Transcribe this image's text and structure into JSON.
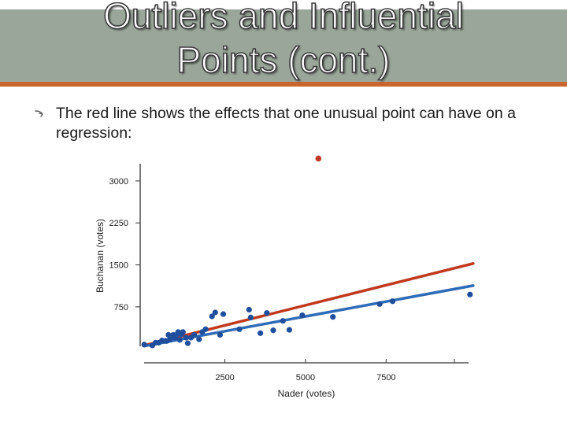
{
  "slide": {
    "title_line1": "Outliers and Influential",
    "title_line2": "Points (cont.)",
    "bullet_icon": "arrow-bullet-icon",
    "bullet_text": "The red line shows the effects that one unusual point can have on a regression:"
  },
  "colors": {
    "title_bar": "#9aa69a",
    "title_rule": "#c8662e",
    "points": "#1f4e9c",
    "outlier": "#c0392b",
    "fit_with_outlier": "#c0391e",
    "fit_without_outlier": "#2e6cb8"
  },
  "chart_data": {
    "type": "scatter",
    "xlabel": "Nader (votes)",
    "ylabel": "Buchanan (votes)",
    "x_ticks": [
      2500,
      5000,
      7500
    ],
    "y_ticks": [
      750,
      1500,
      2250,
      3000
    ],
    "xlim": [
      -200,
      10300
    ],
    "ylim": [
      -250,
      3350
    ],
    "grid": false,
    "points": [
      [
        0,
        75
      ],
      [
        250,
        60
      ],
      [
        350,
        110
      ],
      [
        450,
        110
      ],
      [
        550,
        150
      ],
      [
        650,
        140
      ],
      [
        700,
        140
      ],
      [
        750,
        250
      ],
      [
        800,
        170
      ],
      [
        900,
        250
      ],
      [
        950,
        200
      ],
      [
        1000,
        250
      ],
      [
        1050,
        300
      ],
      [
        1100,
        160
      ],
      [
        1150,
        260
      ],
      [
        1200,
        300
      ],
      [
        1300,
        200
      ],
      [
        1350,
        100
      ],
      [
        1450,
        200
      ],
      [
        1550,
        250
      ],
      [
        1700,
        170
      ],
      [
        1800,
        300
      ],
      [
        1900,
        350
      ],
      [
        2100,
        580
      ],
      [
        2200,
        650
      ],
      [
        2350,
        250
      ],
      [
        2450,
        620
      ],
      [
        2950,
        350
      ],
      [
        3250,
        700
      ],
      [
        3300,
        560
      ],
      [
        3600,
        280
      ],
      [
        3800,
        640
      ],
      [
        4000,
        330
      ],
      [
        4300,
        500
      ],
      [
        4500,
        340
      ],
      [
        4900,
        600
      ],
      [
        5850,
        570
      ],
      [
        7300,
        800
      ],
      [
        7700,
        850
      ],
      [
        10100,
        970
      ]
    ],
    "outlier": [
      5400,
      3400
    ],
    "series": [
      {
        "name": "",
        "line": [
          [
            0,
            60
          ],
          [
            10200,
            1525
          ]
        ]
      },
      {
        "name": "",
        "line": [
          [
            0,
            50
          ],
          [
            10200,
            1130
          ]
        ]
      }
    ]
  }
}
